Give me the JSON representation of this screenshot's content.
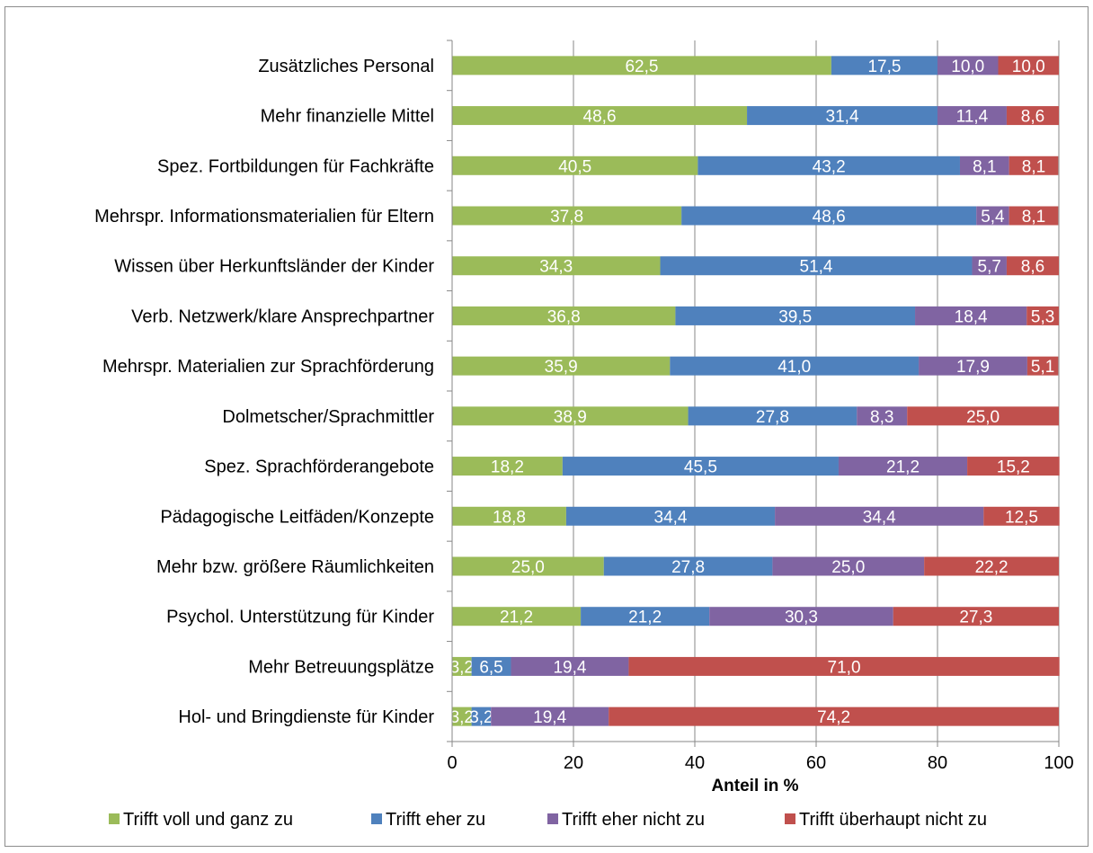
{
  "chart_data": {
    "type": "bar",
    "orientation": "horizontal",
    "stacked": true,
    "categories": [
      "Zusätzliches Personal",
      "Mehr finanzielle Mittel",
      "Spez. Fortbildungen für Fachkräfte",
      "Mehrspr. Informationsmaterialien für Eltern",
      "Wissen über Herkunftsländer der Kinder",
      "Verb. Netzwerk/klare Ansprechpartner",
      "Mehrspr. Materialien zur Sprachförderung",
      "Dolmetscher/Sprachmittler",
      "Spez. Sprachförderangebote",
      "Pädagogische Leitfäden/Konzepte",
      "Mehr bzw. größere Räumlichkeiten",
      "Psychol. Unterstützung für Kinder",
      "Mehr Betreuungsplätze",
      "Hol- und Bringdienste für Kinder"
    ],
    "series": [
      {
        "name": "Trifft voll und ganz zu",
        "color": "#9bbb59",
        "values": [
          62.5,
          48.6,
          40.5,
          37.8,
          34.3,
          36.8,
          35.9,
          38.9,
          18.2,
          18.8,
          25.0,
          21.2,
          3.2,
          3.2
        ]
      },
      {
        "name": "Trifft eher zu",
        "color": "#4f81bd",
        "values": [
          17.5,
          31.4,
          43.2,
          48.6,
          51.4,
          39.5,
          41.0,
          27.8,
          45.5,
          34.4,
          27.8,
          21.2,
          6.5,
          3.2
        ]
      },
      {
        "name": "Trifft eher nicht zu",
        "color": "#8064a2",
        "values": [
          10.0,
          11.4,
          8.1,
          5.4,
          5.7,
          18.4,
          17.9,
          8.3,
          21.2,
          34.4,
          25.0,
          30.3,
          19.4,
          19.4
        ]
      },
      {
        "name": "Trifft überhaupt nicht zu",
        "color": "#c0504d",
        "values": [
          10.0,
          8.6,
          8.1,
          8.1,
          8.6,
          5.3,
          5.1,
          25.0,
          15.2,
          12.5,
          22.2,
          27.3,
          71.0,
          74.2
        ]
      }
    ],
    "xlabel": "Anteil in %",
    "xlim": [
      0,
      100
    ],
    "xticks": [
      0,
      20,
      40,
      60,
      80,
      100
    ],
    "grid": "vertical",
    "legend": "bottom",
    "decimal_separator": ","
  }
}
